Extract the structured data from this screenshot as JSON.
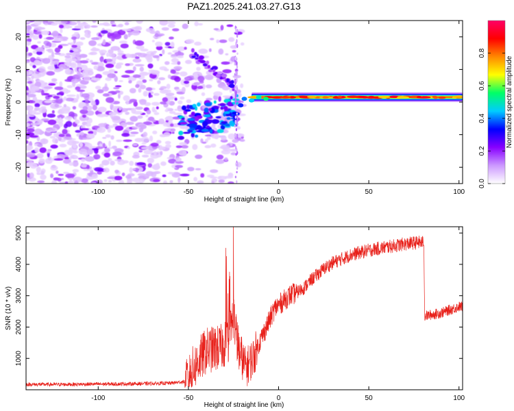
{
  "title": "PAZ1.2025.241.03.27.G13",
  "chart_data": [
    {
      "type": "heatmap",
      "title": "PAZ1.2025.241.03.27.G13",
      "xlabel": "Height of straight line (km)",
      "ylabel": "Frequency (Hz)",
      "xlim": [
        -140,
        102
      ],
      "ylim": [
        -25,
        25
      ],
      "xticks": [
        -100,
        -50,
        0,
        50,
        100
      ],
      "yticks": [
        -20,
        -10,
        0,
        10,
        20
      ],
      "colorbar": {
        "label": "Normalized spectral amplitude",
        "range": [
          0,
          1
        ],
        "ticks": [
          "0.0",
          "0.2",
          "0.4",
          "0.6",
          "0.8"
        ],
        "colors": [
          "#ffffff",
          "#cc99ff",
          "#8800ff",
          "#0000ff",
          "#00ccff",
          "#00ff66",
          "#ffff00",
          "#ff8800",
          "#ff0000",
          "#ff0066"
        ]
      },
      "features": {
        "signal_line": {
          "x_from": -15,
          "x_to": 102,
          "freq_hz": 1.5,
          "peak_amplitude": 0.95
        },
        "noise_region": {
          "x_from": -140,
          "x_to": -20,
          "freq_range": [
            -25,
            25
          ],
          "amplitude_range": [
            0.05,
            0.25
          ]
        }
      }
    },
    {
      "type": "line",
      "xlabel": "Height of straight line (km)",
      "ylabel": "SNR (10 * v/v)",
      "xlim": [
        -140,
        102
      ],
      "ylim": [
        0,
        5200
      ],
      "xticks": [
        -100,
        -50,
        0,
        50,
        100
      ],
      "yticks": [
        1000,
        2000,
        3000,
        4000,
        5000
      ],
      "series": [
        {
          "name": "SNR",
          "color": "#e8201a",
          "x": [
            -140,
            -120,
            -100,
            -80,
            -60,
            -52,
            -48,
            -44,
            -40,
            -36,
            -32,
            -28,
            -25,
            -22,
            -18,
            -14,
            -10,
            -6,
            -2,
            2,
            6,
            10,
            14,
            18,
            22,
            26,
            30,
            40,
            50,
            60,
            70,
            78,
            80.5,
            81,
            90,
            100,
            102
          ],
          "values": [
            170,
            170,
            180,
            190,
            210,
            260,
            620,
            950,
            1250,
            1300,
            1350,
            1550,
            2400,
            1200,
            700,
            1050,
            1600,
            2100,
            2600,
            2800,
            3000,
            3100,
            3250,
            3500,
            3700,
            3900,
            4050,
            4300,
            4450,
            4550,
            4650,
            4700,
            4700,
            2350,
            2450,
            2650,
            2650
          ]
        }
      ]
    }
  ]
}
